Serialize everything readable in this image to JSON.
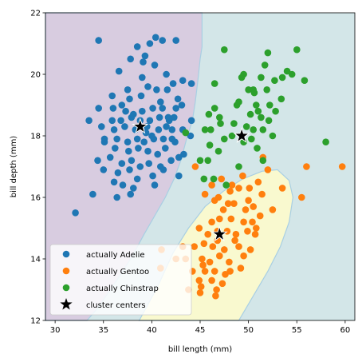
{
  "chart_data": {
    "type": "scatter",
    "xlabel": "bill length (mm)",
    "ylabel": "bill depth (mm)",
    "xlim": [
      29,
      61
    ],
    "ylim": [
      12,
      22
    ],
    "xticks": [
      30,
      35,
      40,
      45,
      50,
      55,
      60
    ],
    "yticks": [
      12,
      14,
      16,
      18,
      20,
      22
    ],
    "grid": false,
    "legend_position": "lower-left",
    "regions": [
      {
        "name": "Adelie region",
        "color": "#d8cce0",
        "polygon": [
          [
            29,
            22
          ],
          [
            45.2,
            22
          ],
          [
            45.2,
            20.9
          ],
          [
            45.0,
            20.5
          ],
          [
            44.8,
            19.9
          ],
          [
            44.5,
            19.1
          ],
          [
            44.2,
            18.5
          ],
          [
            43.6,
            17.9
          ],
          [
            43.0,
            17.2
          ],
          [
            42.3,
            16.6
          ],
          [
            41.4,
            16.0
          ],
          [
            40.3,
            15.4
          ],
          [
            39.2,
            14.8
          ],
          [
            38.0,
            14.1
          ],
          [
            36.8,
            13.5
          ],
          [
            35.5,
            12.9
          ],
          [
            34.4,
            12.4
          ],
          [
            33.3,
            12
          ],
          [
            29,
            12
          ]
        ]
      },
      {
        "name": "Gentoo region",
        "color": "#f9f9cf",
        "polygon": [
          [
            38.7,
            12
          ],
          [
            40.6,
            13.1
          ],
          [
            42.2,
            14.2
          ],
          [
            43.8,
            15.0
          ],
          [
            45.5,
            15.7
          ],
          [
            47.4,
            16.2
          ],
          [
            49.4,
            16.6
          ],
          [
            51.4,
            16.85
          ],
          [
            53.0,
            16.9
          ],
          [
            54.2,
            16.55
          ],
          [
            54.6,
            16.0
          ],
          [
            54.2,
            15.2
          ],
          [
            53.3,
            14.4
          ],
          [
            52.0,
            13.6
          ],
          [
            50.5,
            12.8
          ],
          [
            49.0,
            12
          ]
        ]
      },
      {
        "name": "Chinstrap region",
        "color": "#d3e6e8",
        "polygon": []
      }
    ],
    "series": [
      {
        "name": "actually Adelie",
        "color": "#1f77b4",
        "points": [
          [
            34.5,
            21.1
          ],
          [
            39.3,
            20.6
          ],
          [
            40.4,
            21.2
          ],
          [
            41.1,
            21.1
          ],
          [
            39.8,
            21.0
          ],
          [
            42.5,
            21.1
          ],
          [
            37.8,
            20.5
          ],
          [
            38.5,
            20.9
          ],
          [
            39.1,
            20.4
          ],
          [
            40.3,
            20.3
          ],
          [
            41.5,
            20.0
          ],
          [
            36.6,
            20.1
          ],
          [
            39.0,
            19.9
          ],
          [
            42.2,
            19.7
          ],
          [
            43.2,
            19.8
          ],
          [
            37.5,
            19.5
          ],
          [
            39.6,
            19.6
          ],
          [
            41.6,
            19.5
          ],
          [
            35.9,
            19.3
          ],
          [
            37.7,
            19.2
          ],
          [
            38.9,
            19.3
          ],
          [
            40.9,
            19.1
          ],
          [
            42.7,
            19.2
          ],
          [
            44.1,
            19.7
          ],
          [
            34.5,
            18.9
          ],
          [
            36.0,
            18.9
          ],
          [
            37.3,
            18.8
          ],
          [
            38.1,
            18.7
          ],
          [
            39.0,
            18.8
          ],
          [
            40.1,
            18.9
          ],
          [
            41.1,
            18.9
          ],
          [
            42.5,
            18.9
          ],
          [
            43.1,
            19.0
          ],
          [
            33.5,
            18.5
          ],
          [
            35.9,
            18.5
          ],
          [
            36.8,
            18.5
          ],
          [
            37.9,
            18.6
          ],
          [
            38.8,
            18.5
          ],
          [
            39.8,
            18.5
          ],
          [
            40.8,
            18.6
          ],
          [
            41.7,
            18.6
          ],
          [
            42.3,
            18.6
          ],
          [
            44.1,
            18.5
          ],
          [
            34.8,
            18.3
          ],
          [
            36.1,
            18.2
          ],
          [
            37.2,
            18.3
          ],
          [
            38.3,
            18.2
          ],
          [
            39.5,
            18.3
          ],
          [
            40.7,
            18.2
          ],
          [
            41.5,
            18.3
          ],
          [
            42.1,
            18.2
          ],
          [
            43.2,
            18.2
          ],
          [
            35.1,
            17.9
          ],
          [
            36.4,
            17.9
          ],
          [
            37.5,
            17.8
          ],
          [
            38.5,
            17.9
          ],
          [
            39.2,
            17.8
          ],
          [
            40.2,
            17.9
          ],
          [
            41.2,
            17.9
          ],
          [
            42.1,
            17.9
          ],
          [
            44.0,
            18.0
          ],
          [
            36.2,
            17.6
          ],
          [
            37.6,
            17.5
          ],
          [
            38.6,
            17.6
          ],
          [
            39.6,
            17.5
          ],
          [
            40.6,
            17.4
          ],
          [
            41.4,
            17.6
          ],
          [
            34.4,
            17.2
          ],
          [
            35.7,
            17.3
          ],
          [
            36.9,
            17.1
          ],
          [
            37.9,
            17.2
          ],
          [
            38.8,
            17.0
          ],
          [
            39.7,
            17.1
          ],
          [
            40.9,
            17.0
          ],
          [
            42.0,
            17.2
          ],
          [
            43.3,
            17.4
          ],
          [
            35.0,
            16.9
          ],
          [
            36.5,
            16.8
          ],
          [
            37.7,
            16.9
          ],
          [
            38.5,
            16.6
          ],
          [
            40.1,
            16.7
          ],
          [
            41.2,
            16.9
          ],
          [
            42.8,
            17.3
          ],
          [
            36.1,
            16.5
          ],
          [
            37.0,
            16.4
          ],
          [
            38.1,
            16.3
          ],
          [
            40.3,
            16.4
          ],
          [
            42.8,
            16.7
          ],
          [
            33.9,
            16.1
          ],
          [
            36.4,
            16.0
          ],
          [
            37.8,
            16.1
          ],
          [
            32.1,
            15.5
          ],
          [
            35.1,
            17.8
          ],
          [
            41.8,
            18.5
          ],
          [
            42.4,
            17.8
          ],
          [
            36.9,
            19.0
          ],
          [
            40.5,
            19.5
          ],
          [
            39.4,
            18.1
          ],
          [
            40.0,
            18.0
          ]
        ]
      },
      {
        "name": "actually Gentoo",
        "color": "#ff7f0e",
        "points": [
          [
            44.5,
            17.0
          ],
          [
            45.5,
            16.1
          ],
          [
            46.2,
            16.4
          ],
          [
            47.2,
            16.6
          ],
          [
            48.1,
            16.2
          ],
          [
            49.0,
            16.3
          ],
          [
            50.1,
            16.3
          ],
          [
            51.0,
            16.5
          ],
          [
            52.0,
            16.9
          ],
          [
            53.5,
            16.3
          ],
          [
            55.5,
            16.0
          ],
          [
            56.0,
            17.0
          ],
          [
            59.7,
            17.0
          ],
          [
            51.5,
            17.3
          ],
          [
            49.4,
            16.7
          ],
          [
            46.5,
            15.9
          ],
          [
            47.4,
            15.6
          ],
          [
            48.5,
            15.8
          ],
          [
            49.7,
            15.6
          ],
          [
            50.5,
            15.7
          ],
          [
            51.2,
            15.4
          ],
          [
            46.2,
            15.2
          ],
          [
            47.0,
            15.3
          ],
          [
            48.2,
            15.3
          ],
          [
            49.5,
            15.2
          ],
          [
            50.4,
            15.2
          ],
          [
            44.9,
            15.0
          ],
          [
            45.8,
            14.8
          ],
          [
            46.8,
            14.9
          ],
          [
            47.8,
            14.9
          ],
          [
            48.7,
            14.8
          ],
          [
            49.9,
            14.9
          ],
          [
            50.7,
            14.8
          ],
          [
            43.2,
            14.4
          ],
          [
            44.4,
            14.4
          ],
          [
            45.4,
            14.5
          ],
          [
            46.3,
            14.4
          ],
          [
            47.5,
            14.3
          ],
          [
            48.6,
            14.6
          ],
          [
            49.5,
            14.1
          ],
          [
            50.2,
            14.3
          ],
          [
            41.0,
            14.3
          ],
          [
            43.5,
            14.0
          ],
          [
            45.2,
            14.0
          ],
          [
            46.0,
            13.9
          ],
          [
            47.0,
            14.1
          ],
          [
            48.0,
            13.9
          ],
          [
            49.2,
            13.7
          ],
          [
            44.2,
            13.6
          ],
          [
            45.5,
            13.6
          ],
          [
            46.5,
            13.6
          ],
          [
            47.6,
            13.5
          ],
          [
            48.1,
            13.6
          ],
          [
            44.9,
            13.3
          ],
          [
            46.2,
            13.3
          ],
          [
            47.3,
            13.2
          ],
          [
            43.8,
            13.0
          ],
          [
            45.1,
            13.1
          ],
          [
            46.7,
            13.0
          ],
          [
            45.0,
            12.9
          ],
          [
            46.6,
            12.8
          ],
          [
            40.9,
            13.7
          ],
          [
            42.5,
            14.0
          ],
          [
            47.9,
            15.8
          ],
          [
            50.0,
            15.9
          ],
          [
            51.4,
            16.1
          ],
          [
            52.5,
            15.6
          ],
          [
            46.9,
            16.0
          ],
          [
            48.3,
            16.4
          ],
          [
            50.8,
            15.0
          ],
          [
            45.3,
            13.8
          ],
          [
            46.8,
            14.6
          ],
          [
            49.0,
            14.4
          ]
        ]
      },
      {
        "name": "actually Chinstrap",
        "color": "#2ca02c",
        "points": [
          [
            46.5,
            19.7
          ],
          [
            47.5,
            20.8
          ],
          [
            49.0,
            19.1
          ],
          [
            49.5,
            20.0
          ],
          [
            50.0,
            19.5
          ],
          [
            50.2,
            18.7
          ],
          [
            50.5,
            19.5
          ],
          [
            50.8,
            19.0
          ],
          [
            51.3,
            19.9
          ],
          [
            51.7,
            20.3
          ],
          [
            52.0,
            20.7
          ],
          [
            52.2,
            19.0
          ],
          [
            52.7,
            19.8
          ],
          [
            53.5,
            19.9
          ],
          [
            54.0,
            20.1
          ],
          [
            54.5,
            20.0
          ],
          [
            55.0,
            20.8
          ],
          [
            55.8,
            19.8
          ],
          [
            50.6,
            19.4
          ],
          [
            51.0,
            18.8
          ],
          [
            51.5,
            18.2
          ],
          [
            51.9,
            19.5
          ],
          [
            52.1,
            18.5
          ],
          [
            51.3,
            18.6
          ],
          [
            50.3,
            17.9
          ],
          [
            49.5,
            17.8
          ],
          [
            49.8,
            18.3
          ],
          [
            50.9,
            17.6
          ],
          [
            51.5,
            17.2
          ],
          [
            52.8,
            18.8
          ],
          [
            48.5,
            18.4
          ],
          [
            47.5,
            17.9
          ],
          [
            47.0,
            18.6
          ],
          [
            46.9,
            17.5
          ],
          [
            46.0,
            17.7
          ],
          [
            45.5,
            18.2
          ],
          [
            46.5,
            18.9
          ],
          [
            45.8,
            17.2
          ],
          [
            45.0,
            17.2
          ],
          [
            45.4,
            16.6
          ],
          [
            46.4,
            16.6
          ],
          [
            47.7,
            16.4
          ],
          [
            48.3,
            18.0
          ],
          [
            50.5,
            18.2
          ],
          [
            45.9,
            18.7
          ],
          [
            43.5,
            18.1
          ],
          [
            46.1,
            18.2
          ],
          [
            58.0,
            17.8
          ],
          [
            48.8,
            19.0
          ],
          [
            52.5,
            18.0
          ],
          [
            49.3,
            19.9
          ],
          [
            53.4,
            19.2
          ],
          [
            47.1,
            18.4
          ],
          [
            49.0,
            17.0
          ]
        ]
      }
    ],
    "cluster_centers": {
      "name": "cluster centers",
      "color": "#000000",
      "points": [
        [
          38.8,
          18.3
        ],
        [
          47.0,
          14.8
        ],
        [
          49.3,
          18.0
        ]
      ]
    }
  }
}
